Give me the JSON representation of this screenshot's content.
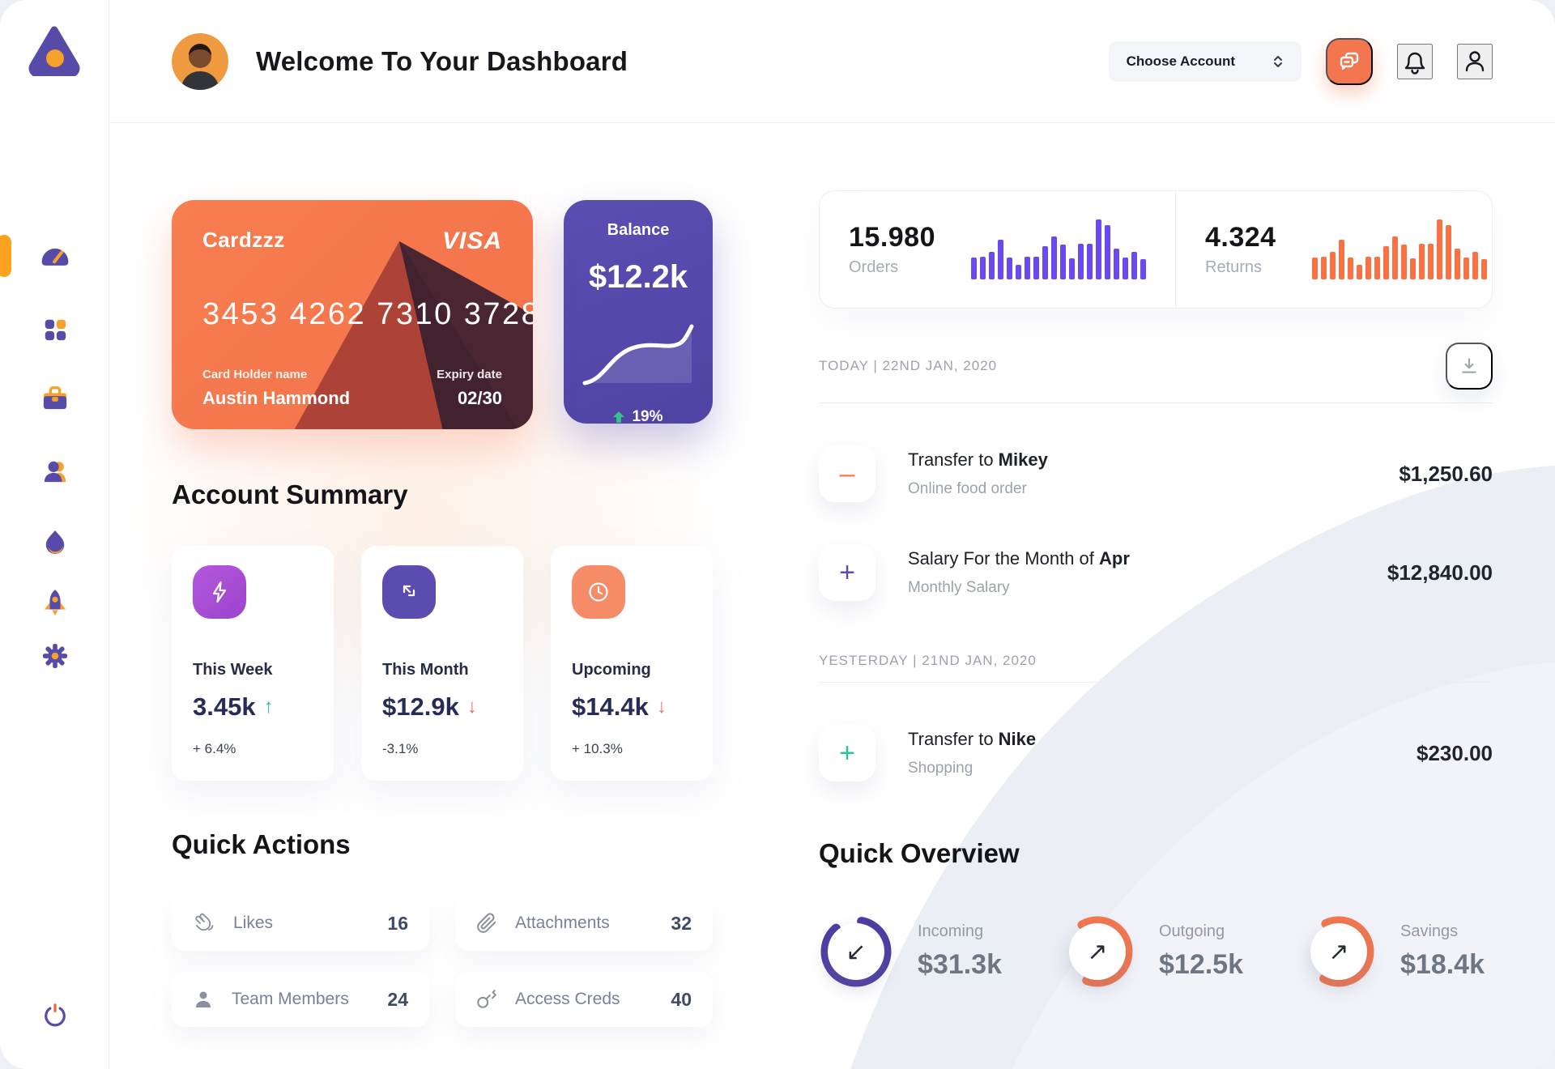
{
  "sidebar": {
    "items": [
      {
        "name": "dashboard",
        "active": true
      },
      {
        "name": "apps",
        "active": false
      },
      {
        "name": "projects",
        "active": false
      },
      {
        "name": "team",
        "active": false
      },
      {
        "name": "trending",
        "active": false
      },
      {
        "name": "launch",
        "active": false
      },
      {
        "name": "settings",
        "active": false
      }
    ],
    "power": "power"
  },
  "header": {
    "title": "Welcome To Your Dashboard",
    "account_selector_label": "Choose Account"
  },
  "credit_card": {
    "name": "Cardzzz",
    "brand": "VISA",
    "number": "3453 4262 7310 3728",
    "holder_label": "Card Holder name",
    "holder_name": "Austin Hammond",
    "expiry_label": "Expiry date",
    "expiry": "02/30"
  },
  "balance_card": {
    "label": "Balance",
    "amount": "$12.2k",
    "change": "19%"
  },
  "stats": {
    "orders": {
      "value": "15.980",
      "label": "Orders",
      "bar_color": "#6A4AF0",
      "bars": [
        36,
        38,
        46,
        66,
        37,
        25,
        38,
        38,
        55,
        71,
        58,
        35,
        59,
        59,
        100,
        90,
        51,
        37,
        46,
        34
      ]
    },
    "returns": {
      "value": "4.324",
      "label": "Returns",
      "bar_color": "#FA7144",
      "bars": [
        36,
        38,
        46,
        66,
        37,
        25,
        38,
        38,
        55,
        71,
        58,
        35,
        59,
        59,
        100,
        90,
        51,
        37,
        46,
        34
      ]
    }
  },
  "account_summary": {
    "title": "Account Summary",
    "items": [
      {
        "label": "This Week",
        "value": "3.45k",
        "delta": "+ 6.4%",
        "trend": "up",
        "icon": "lightning-icon",
        "icon_color": "#A94FD6"
      },
      {
        "label": "This Month",
        "value": "$12.9k",
        "delta": "-3.1%",
        "trend": "down",
        "icon": "transfer-arrows-icon",
        "icon_color": "#5B4CAF"
      },
      {
        "label": "Upcoming",
        "value": "$14.4k",
        "delta": "+ 10.3%",
        "trend": "down",
        "icon": "clock-icon",
        "icon_color": "#F58B67"
      }
    ]
  },
  "quick_actions": {
    "title": "Quick Actions",
    "items": [
      {
        "label": "Likes",
        "count": "16",
        "icon": "clap-icon"
      },
      {
        "label": "Attachments",
        "count": "32",
        "icon": "paperclip-icon"
      },
      {
        "label": "Team Members",
        "count": "24",
        "icon": "member-icon"
      },
      {
        "label": "Access Creds",
        "count": "40",
        "icon": "key-icon"
      }
    ]
  },
  "transactions": [
    {
      "header": "TODAY | 22ND JAN, 2020",
      "rows": [
        {
          "title": "Transfer to ",
          "title_bold": "Mikey",
          "subtitle": "Online food order",
          "amount": "$1,250.60",
          "icon": "minus-icon",
          "icon_color": "#F4774E"
        },
        {
          "title": "Salary For the Month of ",
          "title_bold": "Apr",
          "subtitle": "Monthly Salary",
          "amount": "$12,840.00",
          "icon": "plus-icon",
          "icon_color": "#5B4CAF"
        }
      ]
    },
    {
      "header": "YESTERDAY | 21ND JAN, 2020",
      "rows": [
        {
          "title": "Transfer to ",
          "title_bold": "Nike",
          "subtitle": "Shopping",
          "amount": "$230.00",
          "icon": "plus-icon",
          "icon_color": "#2BC498"
        }
      ]
    }
  ],
  "quick_overview": {
    "title": "Quick Overview",
    "items": [
      {
        "label": "Incoming",
        "value": "$31.3k",
        "percent": 86,
        "color": "#4C3CA4",
        "arrow": "↙"
      },
      {
        "label": "Outgoing",
        "value": "$12.5k",
        "percent": 64,
        "color": "#F4764E",
        "arrow": "↗"
      },
      {
        "label": "Savings",
        "value": "$18.4k",
        "percent": 65,
        "color": "#F4764E",
        "arrow": "↗"
      }
    ]
  }
}
